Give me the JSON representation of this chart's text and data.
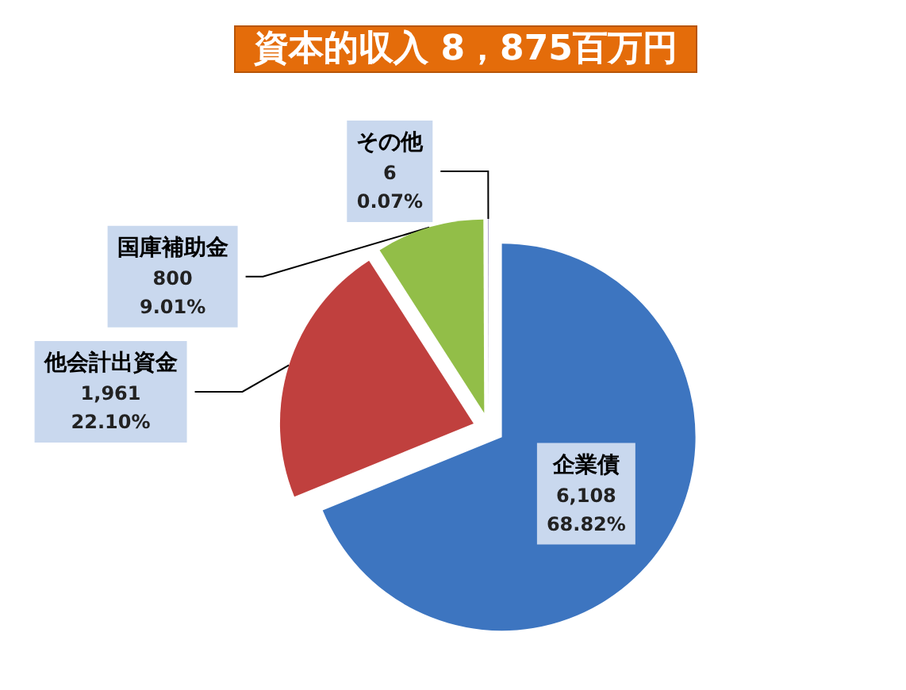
{
  "chart_data": {
    "type": "pie",
    "title": "資本的収入 8，875百万円",
    "categories": [
      "企業債",
      "他会計出資金",
      "国庫補助金",
      "その他"
    ],
    "values": [
      6108,
      1961,
      800,
      6
    ],
    "colors": [
      "#3d75c0",
      "#c0403e",
      "#92be48",
      "#a99cc8"
    ],
    "value_labels": [
      "6,108\n68.82%",
      "1,961\n22.10%",
      "800\n9.01%",
      "6\n0.07%"
    ]
  }
}
